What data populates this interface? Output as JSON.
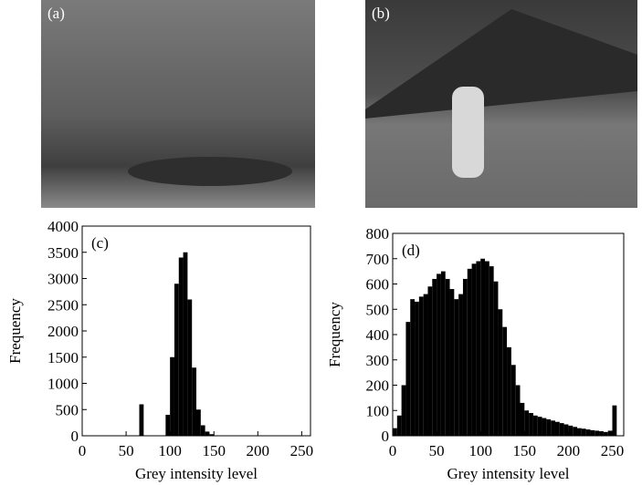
{
  "images": [
    {
      "label": "(a)"
    },
    {
      "label": "(b)"
    }
  ],
  "chart_data": [
    {
      "type": "histogram",
      "annotation": "(c)",
      "xlabel": "Grey intensity level",
      "ylabel": "Frequency",
      "color": "#000000",
      "bins": [
        0,
        5,
        10,
        15,
        20,
        25,
        30,
        35,
        40,
        45,
        50,
        55,
        60,
        65,
        70,
        75,
        80,
        85,
        90,
        95,
        100,
        105,
        110,
        115,
        120,
        125,
        130,
        135,
        140,
        145,
        150,
        155,
        160,
        165,
        170,
        175,
        180,
        185,
        190,
        195,
        200,
        205,
        210,
        215,
        220,
        225,
        230,
        235,
        240,
        245,
        250,
        255
      ],
      "counts": [
        0,
        0,
        0,
        0,
        0,
        0,
        0,
        0,
        0,
        0,
        0,
        0,
        0,
        600,
        0,
        0,
        0,
        0,
        0,
        400,
        1500,
        2900,
        3400,
        3500,
        2600,
        1300,
        500,
        200,
        80,
        30,
        0,
        0,
        0,
        0,
        0,
        0,
        0,
        0,
        0,
        0,
        0,
        0,
        0,
        0,
        0,
        0,
        0,
        0,
        0,
        0,
        0
      ],
      "xlim": [
        0,
        260
      ],
      "ylim": [
        0,
        4000
      ],
      "xticks": [
        0,
        50,
        100,
        150,
        200,
        250
      ],
      "yticks": [
        0,
        500,
        1000,
        1500,
        2000,
        2500,
        3000,
        3500,
        4000
      ]
    },
    {
      "type": "histogram",
      "annotation": "(d)",
      "xlabel": "Grey intensity level",
      "ylabel": "Frequency",
      "color": "#000000",
      "bins": [
        0,
        5,
        10,
        15,
        20,
        25,
        30,
        35,
        40,
        45,
        50,
        55,
        60,
        65,
        70,
        75,
        80,
        85,
        90,
        95,
        100,
        105,
        110,
        115,
        120,
        125,
        130,
        135,
        140,
        145,
        150,
        155,
        160,
        165,
        170,
        175,
        180,
        185,
        190,
        195,
        200,
        205,
        210,
        215,
        220,
        225,
        230,
        235,
        240,
        245,
        250,
        255
      ],
      "counts": [
        30,
        80,
        200,
        450,
        540,
        530,
        550,
        560,
        590,
        620,
        640,
        650,
        620,
        580,
        540,
        560,
        620,
        660,
        680,
        690,
        700,
        690,
        670,
        610,
        500,
        430,
        350,
        280,
        200,
        130,
        100,
        90,
        80,
        75,
        70,
        65,
        60,
        55,
        50,
        45,
        40,
        35,
        30,
        28,
        25,
        22,
        20,
        18,
        15,
        20,
        120
      ],
      "xlim": [
        0,
        263
      ],
      "ylim": [
        0,
        800
      ],
      "xticks": [
        0,
        50,
        100,
        150,
        200,
        250
      ],
      "yticks": [
        0,
        100,
        200,
        300,
        400,
        500,
        600,
        700,
        800
      ]
    }
  ]
}
